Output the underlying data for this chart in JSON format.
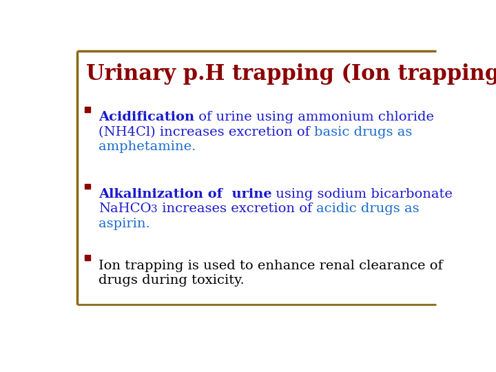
{
  "title": "Urinary p.H trapping (Ion trapping)",
  "title_color": "#8B0000",
  "title_fontsize": 22,
  "bg_color": "#FFFFFF",
  "border_color": "#8B6914",
  "bullet_color": "#8B0000",
  "footer_line_color": "#8B6914",
  "font_family": "DejaVu Serif",
  "body_fontsize": 14,
  "bullets": [
    {
      "lines": [
        [
          {
            "text": "Acidification",
            "color": "#1a1acd",
            "bold": true
          },
          {
            "text": " of urine using ammonium chloride",
            "color": "#1a1acd",
            "bold": false
          }
        ],
        [
          {
            "text": "(NH4Cl) increases excretion of ",
            "color": "#1a1acd",
            "bold": false
          },
          {
            "text": "basic drugs as",
            "color": "#1a6bcd",
            "bold": false
          }
        ],
        [
          {
            "text": "amphetamine.",
            "color": "#1a6bcd",
            "bold": false
          }
        ]
      ]
    },
    {
      "lines": [
        [
          {
            "text": "Alkalinization of  urine",
            "color": "#1a1acd",
            "bold": true
          },
          {
            "text": " using sodium bicarbonate",
            "color": "#1a1acd",
            "bold": false
          }
        ],
        [
          {
            "text": "NaHCO",
            "color": "#1a1acd",
            "bold": false
          },
          {
            "text": "3",
            "color": "#1a1acd",
            "bold": false,
            "sub": true
          },
          {
            "text": " increases excretion of ",
            "color": "#1a1acd",
            "bold": false
          },
          {
            "text": "acidic drugs as",
            "color": "#1a6bcd",
            "bold": false
          }
        ],
        [
          {
            "text": "aspirin.",
            "color": "#1a6bcd",
            "bold": false
          }
        ]
      ]
    },
    {
      "lines": [
        [
          {
            "text": "Ion trapping is used to enhance renal clearance of",
            "color": "#000000",
            "bold": false
          }
        ],
        [
          {
            "text": "drugs during toxicity.",
            "color": "#000000",
            "bold": false
          }
        ]
      ]
    }
  ]
}
